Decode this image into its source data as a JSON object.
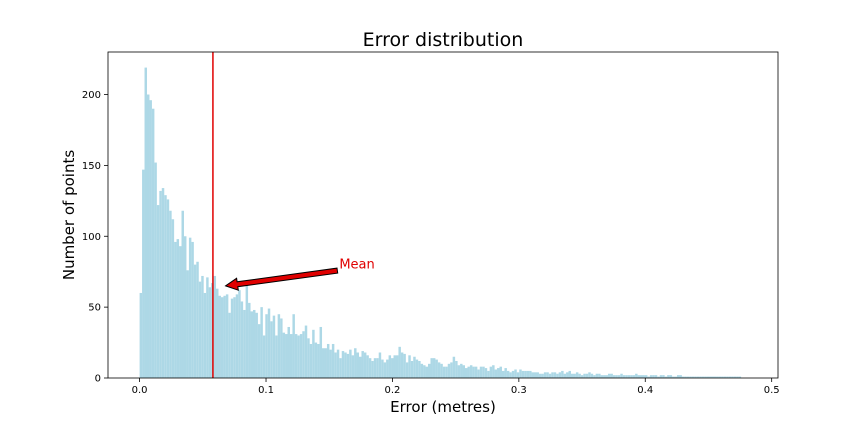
{
  "chart_data": {
    "type": "bar",
    "title": "Error distribution",
    "xlabel": "Error (metres)",
    "ylabel": "Number of points",
    "xlim": [
      -0.025,
      0.505
    ],
    "ylim": [
      0,
      230
    ],
    "x_ticks": [
      "0.0",
      "0.1",
      "0.2",
      "0.3",
      "0.4",
      "0.5"
    ],
    "x_tick_values": [
      0.0,
      0.1,
      0.2,
      0.3,
      0.4,
      0.5
    ],
    "y_ticks": [
      "0",
      "50",
      "100",
      "150",
      "200"
    ],
    "y_tick_values": [
      0,
      50,
      100,
      150,
      200
    ],
    "bin_start": 0.0,
    "bin_width": 0.00195,
    "bar_color": "#add8e6",
    "values": [
      60,
      147,
      219,
      200,
      196,
      190,
      152,
      122,
      132,
      134,
      129,
      126,
      118,
      112,
      96,
      98,
      93,
      118,
      100,
      76,
      99,
      96,
      80,
      82,
      68,
      72,
      60,
      71,
      64,
      67,
      72,
      63,
      58,
      57,
      58,
      59,
      46,
      56,
      57,
      59,
      62,
      54,
      48,
      67,
      53,
      47,
      48,
      46,
      38,
      50,
      30,
      45,
      49,
      40,
      44,
      30,
      45,
      42,
      32,
      31,
      36,
      31,
      45,
      31,
      30,
      31,
      33,
      37,
      28,
      24,
      34,
      25,
      24,
      36,
      21,
      21,
      24,
      20,
      24,
      18,
      20,
      14,
      19,
      18,
      17,
      20,
      16,
      21,
      18,
      15,
      19,
      18,
      16,
      14,
      12,
      14,
      14,
      18,
      13,
      11,
      13,
      16,
      14,
      16,
      16,
      22,
      18,
      17,
      11,
      16,
      12,
      15,
      13,
      12,
      10,
      9,
      8,
      10,
      14,
      14,
      13,
      11,
      10,
      8,
      8,
      10,
      11,
      15,
      12,
      9,
      10,
      9,
      7,
      8,
      9,
      8,
      8,
      6,
      8,
      8,
      7,
      5,
      8,
      9,
      6,
      7,
      8,
      5,
      7,
      5,
      4,
      5,
      6,
      4,
      6,
      5,
      5,
      5,
      5,
      4,
      4,
      4,
      3,
      3,
      4,
      4,
      3,
      4,
      4,
      3,
      4,
      5,
      3,
      4,
      5,
      3,
      3,
      4,
      3,
      2,
      3,
      3,
      4,
      3,
      2,
      3,
      3,
      2,
      2,
      2,
      3,
      3,
      2,
      2,
      2,
      3,
      2,
      2,
      2,
      2,
      2,
      3,
      2,
      2,
      2,
      2,
      1,
      2,
      2,
      2,
      1,
      2,
      2,
      1,
      2,
      2,
      1,
      1,
      2,
      2,
      1,
      1,
      1,
      1,
      1,
      1,
      1,
      1,
      1,
      1,
      1,
      1,
      1,
      1,
      1,
      1,
      1,
      1,
      1,
      1,
      1,
      1,
      1,
      1
    ],
    "mean_line": {
      "x": 0.058,
      "color": "#e00000"
    },
    "annotation": {
      "text": "Mean",
      "text_x": 0.158,
      "text_y": 80,
      "arrow_tip_x": 0.068,
      "arrow_tip_y": 65,
      "color": "#e00000"
    }
  }
}
